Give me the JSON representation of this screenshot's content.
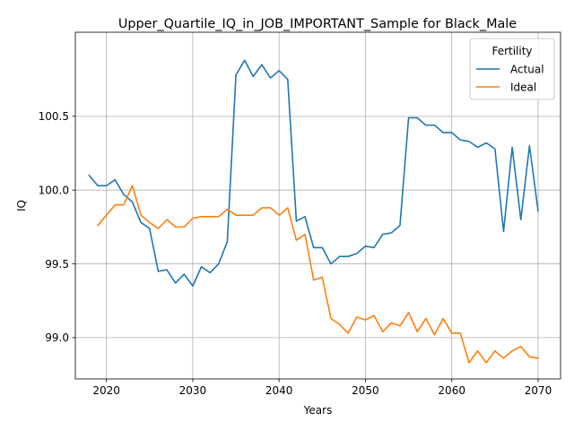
{
  "chart_data": {
    "type": "line",
    "title": "Upper_Quartile_IQ_in_JOB_IMPORTANT_Sample for Black_Male",
    "xlabel": "Years",
    "ylabel": "IQ",
    "xlim": [
      2016.4,
      2072.6
    ],
    "ylim": [
      98.72,
      101.07
    ],
    "xticks": [
      2020,
      2030,
      2040,
      2050,
      2060,
      2070
    ],
    "yticks": [
      99.0,
      99.5,
      100.0,
      100.5
    ],
    "xtick_labels": [
      "2020",
      "2030",
      "2040",
      "2050",
      "2060",
      "2070"
    ],
    "ytick_labels": [
      "99.0",
      "99.5",
      "100.0",
      "100.5"
    ],
    "grid": true,
    "legend": {
      "title": "Fertility",
      "placement": "top-right"
    },
    "series": [
      {
        "name": "Actual",
        "color": "#1f77b4",
        "x": [
          2018,
          2019,
          2020,
          2021,
          2022,
          2023,
          2024,
          2025,
          2026,
          2027,
          2028,
          2029,
          2030,
          2031,
          2032,
          2033,
          2034,
          2035,
          2036,
          2037,
          2038,
          2039,
          2040,
          2041,
          2042,
          2043,
          2044,
          2045,
          2046,
          2047,
          2048,
          2049,
          2050,
          2051,
          2052,
          2053,
          2054,
          2055,
          2056,
          2057,
          2058,
          2059,
          2060,
          2061,
          2062,
          2063,
          2064,
          2065,
          2066,
          2067,
          2068,
          2069,
          2070
        ],
        "values": [
          100.1,
          100.03,
          100.03,
          100.07,
          99.97,
          99.92,
          99.78,
          99.74,
          99.45,
          99.46,
          99.37,
          99.43,
          99.35,
          99.48,
          99.44,
          99.5,
          99.65,
          100.78,
          100.88,
          100.77,
          100.85,
          100.76,
          100.81,
          100.75,
          99.79,
          99.82,
          99.61,
          99.61,
          99.5,
          99.55,
          99.55,
          99.57,
          99.62,
          99.61,
          99.7,
          99.71,
          99.76,
          100.49,
          100.49,
          100.44,
          100.44,
          100.39,
          100.39,
          100.34,
          100.33,
          100.29,
          100.32,
          100.28,
          99.72,
          100.29,
          99.8,
          100.3,
          99.86
        ]
      },
      {
        "name": "Ideal",
        "color": "#ff7f0e",
        "x": [
          2019,
          2020,
          2021,
          2022,
          2023,
          2024,
          2025,
          2026,
          2027,
          2028,
          2029,
          2030,
          2031,
          2032,
          2033,
          2034,
          2035,
          2036,
          2037,
          2038,
          2039,
          2040,
          2041,
          2042,
          2043,
          2044,
          2045,
          2046,
          2047,
          2048,
          2049,
          2050,
          2051,
          2052,
          2053,
          2054,
          2055,
          2056,
          2057,
          2058,
          2059,
          2060,
          2061,
          2062,
          2063,
          2064,
          2065,
          2066,
          2067,
          2068,
          2069,
          2070
        ],
        "values": [
          99.76,
          99.83,
          99.9,
          99.9,
          100.03,
          99.83,
          99.78,
          99.74,
          99.8,
          99.75,
          99.75,
          99.81,
          99.82,
          99.82,
          99.82,
          99.87,
          99.83,
          99.83,
          99.83,
          99.88,
          99.88,
          99.83,
          99.88,
          99.66,
          99.7,
          99.39,
          99.41,
          99.13,
          99.09,
          99.03,
          99.14,
          99.12,
          99.15,
          99.04,
          99.1,
          99.08,
          99.17,
          99.04,
          99.13,
          99.02,
          99.13,
          99.03,
          99.03,
          98.83,
          98.91,
          98.83,
          98.91,
          98.86,
          98.91,
          98.94,
          98.87,
          98.86
        ]
      }
    ]
  }
}
